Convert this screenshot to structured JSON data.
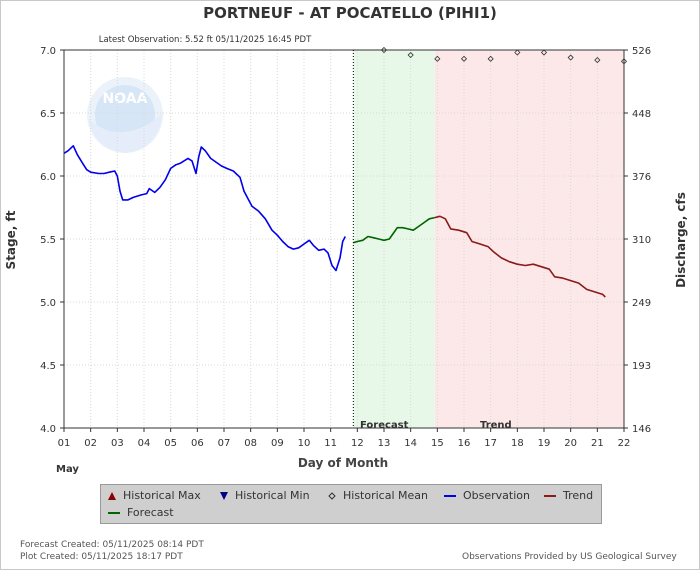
{
  "chart_data": {
    "type": "line",
    "title": "PORTNEUF - AT POCATELLO  (PIHI1)",
    "subtitle": "Latest Observation: 5.52 ft 05/11/2025 16:45 PDT",
    "xlabel": "Day of Month",
    "month_label": "May",
    "ylabel_left": "Stage, ft",
    "ylabel_right": "Discharge, cfs",
    "xlim": [
      1,
      22
    ],
    "ylim": [
      4.0,
      7.0
    ],
    "x_ticks": [
      "01",
      "02",
      "03",
      "04",
      "05",
      "06",
      "07",
      "08",
      "09",
      "10",
      "11",
      "12",
      "13",
      "14",
      "15",
      "16",
      "17",
      "18",
      "19",
      "20",
      "21",
      "22"
    ],
    "y_ticks": [
      "4.0",
      "4.5",
      "5.0",
      "5.5",
      "6.0",
      "6.5",
      "7.0"
    ],
    "y2_ticks": [
      {
        "label": "146",
        "stage": 4.0
      },
      {
        "label": "193",
        "stage": 4.5
      },
      {
        "label": "249",
        "stage": 5.0
      },
      {
        "label": "310",
        "stage": 5.5
      },
      {
        "label": "376",
        "stage": 6.0
      },
      {
        "label": "448",
        "stage": 6.5
      },
      {
        "label": "526",
        "stage": 7.0
      }
    ],
    "region_labels": {
      "forecast": "Forecast",
      "trend": "Trend"
    },
    "forecast_start": 11.85,
    "trend_start": 14.9,
    "colors": {
      "observation": "#0000ee",
      "forecast": "#006400",
      "trend": "#8b1a1a",
      "forecast_bg": "#e8f8e8",
      "trend_bg": "#fce8e8"
    },
    "series": [
      {
        "name": "Observation",
        "values": [
          [
            1.0,
            6.18
          ],
          [
            1.15,
            6.2
          ],
          [
            1.35,
            6.24
          ],
          [
            1.5,
            6.17
          ],
          [
            1.7,
            6.1
          ],
          [
            1.85,
            6.05
          ],
          [
            2.0,
            6.03
          ],
          [
            2.3,
            6.02
          ],
          [
            2.5,
            6.02
          ],
          [
            2.7,
            6.03
          ],
          [
            2.9,
            6.04
          ],
          [
            3.0,
            6.0
          ],
          [
            3.1,
            5.88
          ],
          [
            3.2,
            5.81
          ],
          [
            3.4,
            5.81
          ],
          [
            3.6,
            5.83
          ],
          [
            3.9,
            5.85
          ],
          [
            4.1,
            5.86
          ],
          [
            4.2,
            5.9
          ],
          [
            4.4,
            5.87
          ],
          [
            4.6,
            5.91
          ],
          [
            4.8,
            5.97
          ],
          [
            5.0,
            6.06
          ],
          [
            5.2,
            6.09
          ],
          [
            5.35,
            6.1
          ],
          [
            5.5,
            6.12
          ],
          [
            5.65,
            6.14
          ],
          [
            5.8,
            6.12
          ],
          [
            5.95,
            6.02
          ],
          [
            6.05,
            6.15
          ],
          [
            6.15,
            6.23
          ],
          [
            6.3,
            6.2
          ],
          [
            6.5,
            6.14
          ],
          [
            6.7,
            6.11
          ],
          [
            6.9,
            6.08
          ],
          [
            7.1,
            6.06
          ],
          [
            7.35,
            6.04
          ],
          [
            7.6,
            5.99
          ],
          [
            7.75,
            5.88
          ],
          [
            7.9,
            5.82
          ],
          [
            8.05,
            5.76
          ],
          [
            8.3,
            5.72
          ],
          [
            8.55,
            5.66
          ],
          [
            8.8,
            5.57
          ],
          [
            9.0,
            5.53
          ],
          [
            9.2,
            5.48
          ],
          [
            9.4,
            5.44
          ],
          [
            9.6,
            5.42
          ],
          [
            9.8,
            5.43
          ],
          [
            10.0,
            5.46
          ],
          [
            10.2,
            5.49
          ],
          [
            10.35,
            5.45
          ],
          [
            10.55,
            5.41
          ],
          [
            10.75,
            5.42
          ],
          [
            10.9,
            5.39
          ],
          [
            11.05,
            5.29
          ],
          [
            11.2,
            5.25
          ],
          [
            11.35,
            5.35
          ],
          [
            11.45,
            5.48
          ],
          [
            11.55,
            5.52
          ]
        ]
      },
      {
        "name": "Forecast",
        "values": [
          [
            11.85,
            5.47
          ],
          [
            12.0,
            5.48
          ],
          [
            12.2,
            5.49
          ],
          [
            12.4,
            5.52
          ],
          [
            12.6,
            5.51
          ],
          [
            12.8,
            5.5
          ],
          [
            13.0,
            5.49
          ],
          [
            13.2,
            5.5
          ],
          [
            13.4,
            5.56
          ],
          [
            13.5,
            5.59
          ],
          [
            13.7,
            5.59
          ],
          [
            13.9,
            5.58
          ],
          [
            14.1,
            5.57
          ],
          [
            14.3,
            5.6
          ],
          [
            14.5,
            5.63
          ],
          [
            14.7,
            5.66
          ],
          [
            14.9,
            5.67
          ]
        ]
      },
      {
        "name": "Trend",
        "values": [
          [
            14.9,
            5.67
          ],
          [
            15.1,
            5.68
          ],
          [
            15.3,
            5.66
          ],
          [
            15.5,
            5.58
          ],
          [
            15.8,
            5.57
          ],
          [
            16.1,
            5.55
          ],
          [
            16.3,
            5.48
          ],
          [
            16.6,
            5.46
          ],
          [
            16.9,
            5.44
          ],
          [
            17.1,
            5.4
          ],
          [
            17.4,
            5.35
          ],
          [
            17.7,
            5.32
          ],
          [
            18.0,
            5.3
          ],
          [
            18.3,
            5.29
          ],
          [
            18.6,
            5.3
          ],
          [
            18.9,
            5.28
          ],
          [
            19.2,
            5.26
          ],
          [
            19.4,
            5.2
          ],
          [
            19.7,
            5.19
          ],
          [
            20.0,
            5.17
          ],
          [
            20.3,
            5.15
          ],
          [
            20.6,
            5.1
          ],
          [
            20.9,
            5.08
          ],
          [
            21.2,
            5.06
          ],
          [
            21.3,
            5.04
          ]
        ]
      },
      {
        "name": "Historical Mean",
        "values": [
          [
            13.0,
            7.0
          ],
          [
            14.0,
            6.96
          ],
          [
            15.0,
            6.93
          ],
          [
            16.0,
            6.93
          ],
          [
            17.0,
            6.93
          ],
          [
            18.0,
            6.98
          ],
          [
            19.0,
            6.98
          ],
          [
            20.0,
            6.94
          ],
          [
            21.0,
            6.92
          ],
          [
            22.0,
            6.91
          ]
        ]
      }
    ],
    "legend_items": [
      {
        "label": "Historical Max",
        "symbol": "triangle-up",
        "color": "#8b0000"
      },
      {
        "label": "Historical Min",
        "symbol": "triangle-down",
        "color": "#00008b"
      },
      {
        "label": "Historical Mean",
        "symbol": "diamond",
        "color": "#333333"
      },
      {
        "label": "Observation",
        "symbol": "line",
        "color": "#0000ee"
      },
      {
        "label": "Trend",
        "symbol": "line",
        "color": "#8b1a1a"
      },
      {
        "label": "Forecast",
        "symbol": "line",
        "color": "#006400"
      }
    ],
    "legend_position": "bottom"
  },
  "logo_text": "NOAA",
  "footer": {
    "forecast_created": "Forecast Created: 05/11/2025 08:14 PDT",
    "plot_created": "Plot Created: 05/11/2025 18:17 PDT",
    "provider": "Observations Provided by US Geological Survey"
  }
}
